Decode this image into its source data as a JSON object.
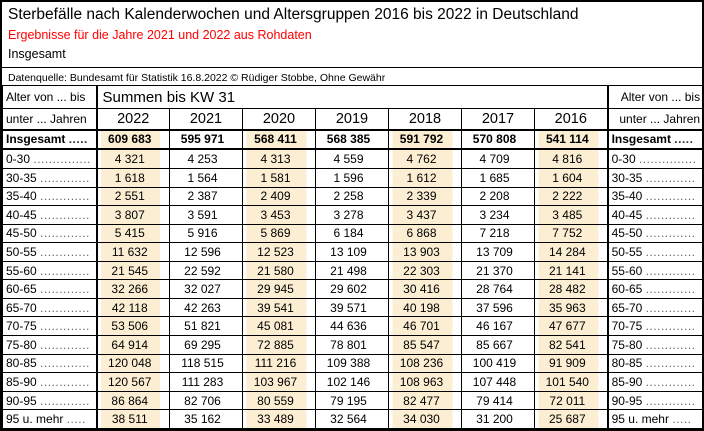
{
  "header": {
    "title": "Sterbefälle nach Kalenderwochen und Altersgruppen 2016 bis 2022 in Deutschland",
    "subtitle": "Ergebnisse für die Jahre 2021 und 2022 aus Rohdaten",
    "section_label": "Insgesamt",
    "source": "Datenquelle: Bundesamt für Statistik 16.8.2022 © Rüdiger Stobbe, Ohne Gewähr"
  },
  "colors": {
    "shade": "#FCEED3",
    "accent_red": "#FF0000",
    "border": "#000000"
  },
  "table": {
    "corner_top": "Alter von ... bis",
    "corner_bottom": "unter ... Jahren",
    "group_header": "Summen bis KW 31",
    "years": [
      "2022",
      "2021",
      "2020",
      "2019",
      "2018",
      "2017",
      "2016"
    ],
    "shaded_year_indexes": [
      0,
      2,
      4,
      6
    ],
    "total_row": {
      "label": "Insgesamt",
      "dots": ".....",
      "values": [
        "609 683",
        "595 971",
        "568 411",
        "568 385",
        "591 792",
        "570 808",
        "541 114"
      ]
    },
    "rows": [
      {
        "label": "0-30",
        "dots": "...............",
        "values": [
          "4 321",
          "4 253",
          "4 313",
          "4 559",
          "4 762",
          "4 709",
          "4 816"
        ]
      },
      {
        "label": "30-35",
        "dots": ".............",
        "values": [
          "1 618",
          "1 564",
          "1 581",
          "1 596",
          "1 612",
          "1 685",
          "1 604"
        ]
      },
      {
        "label": "35-40",
        "dots": ".............",
        "values": [
          "2 551",
          "2 387",
          "2 409",
          "2 258",
          "2 339",
          "2 208",
          "2 222"
        ]
      },
      {
        "label": "40-45",
        "dots": ".............",
        "values": [
          "3 807",
          "3 591",
          "3 453",
          "3 278",
          "3 437",
          "3 234",
          "3 485"
        ]
      },
      {
        "label": "45-50",
        "dots": ".............",
        "values": [
          "5 415",
          "5 916",
          "5 869",
          "6 184",
          "6 868",
          "7 218",
          "7 752"
        ]
      },
      {
        "label": "50-55",
        "dots": ".............",
        "values": [
          "11 632",
          "12 596",
          "12 523",
          "13 109",
          "13 903",
          "13 709",
          "14 284"
        ]
      },
      {
        "label": "55-60",
        "dots": ".............",
        "values": [
          "21 545",
          "22 592",
          "21 580",
          "21 498",
          "22 303",
          "21 370",
          "21 141"
        ]
      },
      {
        "label": "60-65",
        "dots": ".............",
        "values": [
          "32 266",
          "32 027",
          "29 945",
          "29 602",
          "30 416",
          "28 764",
          "28 482"
        ]
      },
      {
        "label": "65-70",
        "dots": ".............",
        "values": [
          "42 118",
          "42 263",
          "39 541",
          "39 571",
          "40 198",
          "37 596",
          "35 963"
        ]
      },
      {
        "label": "70-75",
        "dots": ".............",
        "values": [
          "53 506",
          "51 821",
          "45 081",
          "44 636",
          "46 701",
          "46 167",
          "47 677"
        ]
      },
      {
        "label": "75-80",
        "dots": ".............",
        "values": [
          "64 914",
          "69 295",
          "72 885",
          "78 801",
          "85 547",
          "85 667",
          "82 541"
        ]
      },
      {
        "label": "80-85",
        "dots": ".............",
        "values": [
          "120 048",
          "118 515",
          "111 216",
          "109 388",
          "108 236",
          "100 419",
          "91 909"
        ]
      },
      {
        "label": "85-90",
        "dots": ".............",
        "values": [
          "120 567",
          "111 283",
          "103 967",
          "102 146",
          "108 963",
          "107 448",
          "101 540"
        ]
      },
      {
        "label": "90-95",
        "dots": ".............",
        "values": [
          "86 864",
          "82 706",
          "80 559",
          "79 195",
          "82 477",
          "79 414",
          "72 011"
        ]
      },
      {
        "label": "95 u. mehr",
        "dots": ".....",
        "values": [
          "38 511",
          "35 162",
          "33 489",
          "32 564",
          "34 030",
          "31 200",
          "25 687"
        ]
      }
    ]
  }
}
